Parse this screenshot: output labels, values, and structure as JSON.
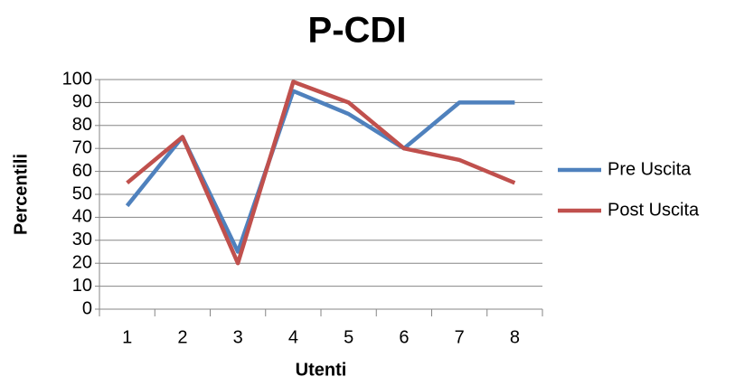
{
  "chart_data": {
    "type": "line",
    "title": "P-CDI",
    "x_label": "Utenti",
    "y_label": "Percentili",
    "categories": [
      "1",
      "2",
      "3",
      "4",
      "5",
      "6",
      "7",
      "8"
    ],
    "series": [
      {
        "name": "Pre Uscita",
        "color": "#4f81bd",
        "values": [
          45,
          75,
          25,
          95,
          85,
          70,
          90,
          90
        ]
      },
      {
        "name": "Post Uscita",
        "color": "#c0504d",
        "values": [
          55,
          75,
          20,
          99,
          90,
          70,
          65,
          55
        ]
      }
    ],
    "ylim": [
      0,
      100
    ],
    "yticks": [
      0,
      10,
      20,
      30,
      40,
      50,
      60,
      70,
      80,
      90,
      100
    ],
    "grid": true,
    "legend": "right"
  }
}
